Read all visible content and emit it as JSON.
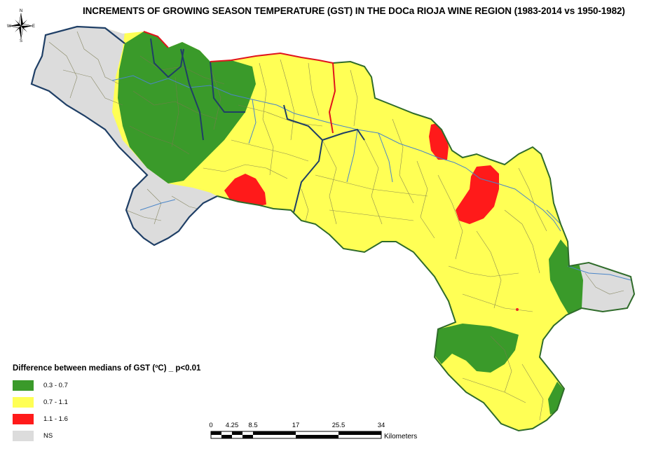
{
  "title": "INCREMENTS OF GROWING SEASON TEMPERATURE (GST) IN THE DOCa RIOJA WINE REGION (1983-2014 vs 1950-1982)",
  "compass": {
    "n": "N",
    "s": "S",
    "e": "E",
    "w": "W"
  },
  "legend": {
    "title": "Difference between medians of GST (ºC) _ p<0.01",
    "items": [
      {
        "label": "0.3 - 0.7",
        "color": "#3a9a2a"
      },
      {
        "label": "0.7 - 1.1",
        "color": "#ffff55"
      },
      {
        "label": "1.1 - 1.6",
        "color": "#ff1a1a"
      },
      {
        "label": "NS",
        "color": "#dcdcdc"
      }
    ]
  },
  "scale": {
    "ticks": [
      "0",
      "4.25",
      "8.5",
      "17",
      "25.5",
      "34"
    ],
    "units": "Kilometers"
  },
  "colors": {
    "boundary": "#1f3f66",
    "river": "#4b86c8",
    "municipal_lines": "#7a7a50",
    "red_border": "#e0141c"
  }
}
